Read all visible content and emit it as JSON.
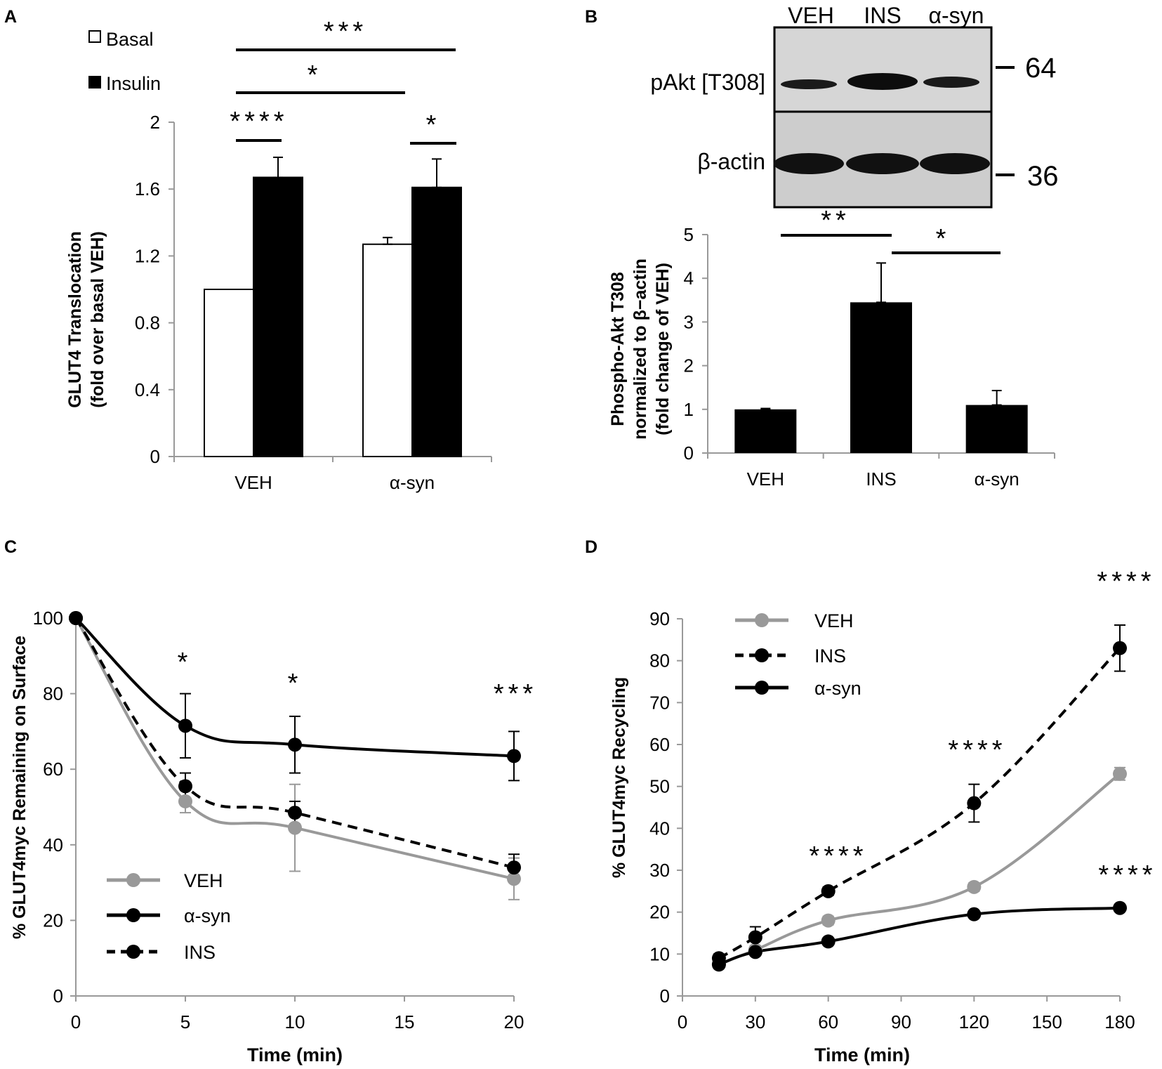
{
  "chart_data": [
    {
      "panel": "A",
      "type": "bar",
      "ylabel_lines": [
        "GLUT4 Translocation",
        "(fold over basal VEH)"
      ],
      "categories": [
        "VEH",
        "α-syn"
      ],
      "ylim": [
        0,
        2
      ],
      "yticks": [
        "0",
        "0.4",
        "0.8",
        "1.2",
        "1.6",
        "2"
      ],
      "series": [
        {
          "name": "Basal",
          "color": "#ffffff",
          "values": [
            1.0,
            1.27
          ],
          "errors": [
            0.0,
            0.04
          ]
        },
        {
          "name": "Insulin",
          "color": "#000000",
          "values": [
            1.67,
            1.61
          ],
          "errors": [
            0.12,
            0.17
          ]
        }
      ],
      "significance": [
        "****",
        "*",
        "*",
        "***"
      ]
    },
    {
      "panel": "B",
      "type": "bar",
      "blot": {
        "lanes": [
          "VEH",
          "INS",
          "α-syn"
        ],
        "rows": [
          "pAkt [T308]",
          "β-actin"
        ],
        "markers": [
          "64",
          "36"
        ]
      },
      "ylabel_lines": [
        "Phospho-Akt T308",
        "normalized to β−actin",
        "(fold change of VEH)"
      ],
      "categories": [
        "VEH",
        "INS",
        "α-syn"
      ],
      "ylim": [
        0,
        5
      ],
      "yticks": [
        "0",
        "1",
        "2",
        "3",
        "4",
        "5"
      ],
      "values": [
        1.0,
        3.45,
        1.1
      ],
      "errors": [
        0.02,
        0.9,
        0.33
      ],
      "significance": [
        "**",
        "*"
      ]
    },
    {
      "panel": "C",
      "type": "line",
      "xlabel": "Time (min)",
      "ylabel": "% GLUT4myc Remaining on Surface",
      "xlim": [
        0,
        20
      ],
      "ylim": [
        0,
        100
      ],
      "xticks": [
        "0",
        "5",
        "10",
        "15",
        "20"
      ],
      "yticks": [
        "0",
        "20",
        "40",
        "60",
        "80",
        "100"
      ],
      "x": [
        0,
        5,
        10,
        20
      ],
      "series": [
        {
          "name": "VEH",
          "color": "#999999",
          "dashed": false,
          "values": [
            100,
            51.5,
            44.5,
            31
          ],
          "errors": [
            0,
            3,
            11.5,
            5.5
          ]
        },
        {
          "name": "α-syn",
          "color": "#000000",
          "dashed": false,
          "values": [
            100,
            71.5,
            66.5,
            63.5
          ],
          "errors": [
            0,
            8.5,
            7.5,
            6.5
          ]
        },
        {
          "name": "INS",
          "color": "#000000",
          "dashed": true,
          "values": [
            100,
            55.5,
            48.5,
            34
          ],
          "errors": [
            0,
            3.5,
            3,
            3.5
          ]
        }
      ],
      "annotations": [
        "*",
        "*",
        "***"
      ]
    },
    {
      "panel": "D",
      "type": "line",
      "xlabel": "Time (min)",
      "ylabel": "% GLUT4myc Recycling",
      "xlim": [
        0,
        180
      ],
      "ylim": [
        0,
        90
      ],
      "xticks": [
        "0",
        "30",
        "60",
        "90",
        "120",
        "150",
        "180"
      ],
      "yticks": [
        "0",
        "10",
        "20",
        "30",
        "40",
        "50",
        "60",
        "70",
        "80",
        "90"
      ],
      "x": [
        15,
        30,
        60,
        120,
        180
      ],
      "series": [
        {
          "name": "VEH",
          "color": "#999999",
          "dashed": false,
          "values": [
            7.5,
            11,
            18,
            26,
            53
          ],
          "errors": [
            0.5,
            1,
            1,
            1,
            1.5
          ]
        },
        {
          "name": "INS",
          "color": "#000000",
          "dashed": true,
          "values": [
            9,
            14,
            25,
            46,
            83
          ],
          "errors": [
            1,
            2.5,
            1,
            4.5,
            5.5
          ]
        },
        {
          "name": "α-syn",
          "color": "#000000",
          "dashed": false,
          "values": [
            7.5,
            10.5,
            13,
            19.5,
            21
          ],
          "errors": [
            0.5,
            0.5,
            0.5,
            0.5,
            0.5
          ]
        }
      ],
      "annotations": [
        "****",
        "****",
        "****",
        "****"
      ]
    }
  ]
}
